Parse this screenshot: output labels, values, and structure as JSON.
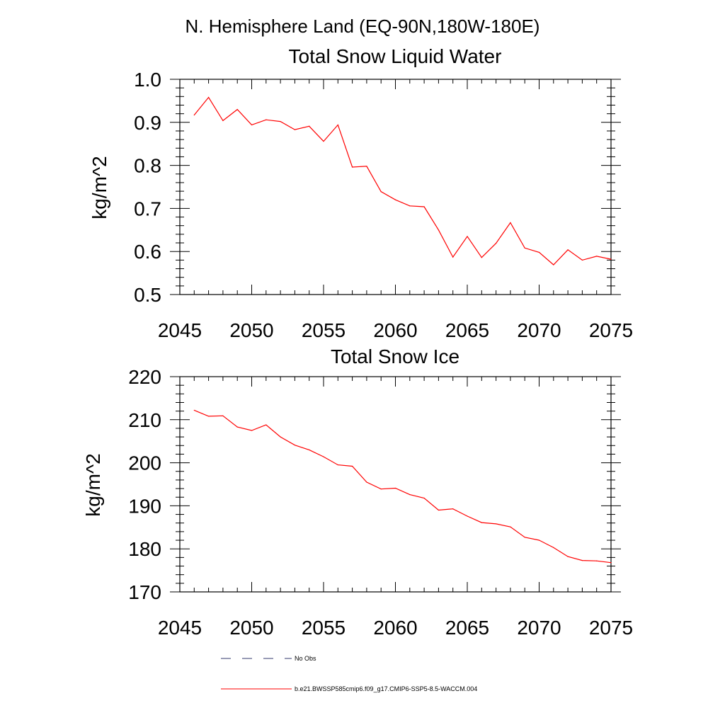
{
  "page_title": "N. Hemisphere Land (EQ-90N,180W-180E)",
  "chart_data": [
    {
      "type": "line",
      "title": "Total Snow Liquid Water",
      "xlabel": "",
      "ylabel": "kg/m^2",
      "xlim": [
        2045,
        2075
      ],
      "ylim": [
        0.5,
        1.0
      ],
      "x_ticks": [
        "2045",
        "2050",
        "2055",
        "2060",
        "2065",
        "2070",
        "2075"
      ],
      "y_ticks": [
        "0.5",
        "0.6",
        "0.7",
        "0.8",
        "0.9",
        "1.0"
      ],
      "grid": false,
      "series": [
        {
          "name": "b.e21.BWSSP585cmip6.f09_g17.CMIP6-SSP5-8.5-WACCM.004",
          "color": "#ff0000",
          "x": [
            2046,
            2047,
            2048,
            2049,
            2050,
            2051,
            2052,
            2053,
            2054,
            2055,
            2056,
            2057,
            2058,
            2059,
            2060,
            2061,
            2062,
            2063,
            2064,
            2065,
            2066,
            2067,
            2068,
            2069,
            2070,
            2071,
            2072,
            2073,
            2074,
            2075
          ],
          "values": [
            0.917,
            0.958,
            0.904,
            0.93,
            0.894,
            0.906,
            0.902,
            0.883,
            0.891,
            0.856,
            0.894,
            0.796,
            0.798,
            0.739,
            0.72,
            0.706,
            0.704,
            0.65,
            0.587,
            0.635,
            0.586,
            0.619,
            0.667,
            0.608,
            0.598,
            0.569,
            0.604,
            0.58,
            0.589,
            0.582
          ]
        }
      ]
    },
    {
      "type": "line",
      "title": "Total Snow Ice",
      "xlabel": "",
      "ylabel": "kg/m^2",
      "xlim": [
        2045,
        2075
      ],
      "ylim": [
        170,
        220
      ],
      "x_ticks": [
        "2045",
        "2050",
        "2055",
        "2060",
        "2065",
        "2070",
        "2075"
      ],
      "y_ticks": [
        "170",
        "180",
        "190",
        "200",
        "210",
        "220"
      ],
      "grid": false,
      "series": [
        {
          "name": "b.e21.BWSSP585cmip6.f09_g17.CMIP6-SSP5-8.5-WACCM.004",
          "color": "#ff0000",
          "x": [
            2046,
            2047,
            2048,
            2049,
            2050,
            2051,
            2052,
            2053,
            2054,
            2055,
            2056,
            2057,
            2058,
            2059,
            2060,
            2061,
            2062,
            2063,
            2064,
            2065,
            2066,
            2067,
            2068,
            2069,
            2070,
            2071,
            2072,
            2073,
            2074,
            2075
          ],
          "values": [
            212.2,
            210.8,
            210.9,
            208.3,
            207.5,
            208.8,
            206.0,
            204.1,
            203.0,
            201.4,
            199.5,
            199.2,
            195.5,
            193.9,
            194.1,
            192.6,
            191.8,
            189.0,
            189.3,
            187.6,
            186.1,
            185.8,
            185.1,
            182.7,
            182.0,
            180.3,
            178.2,
            177.3,
            177.2,
            176.8
          ]
        }
      ]
    }
  ],
  "legend": [
    {
      "label": "No Obs",
      "style": "dashed",
      "color": "#333a6e"
    },
    {
      "label": "b.e21.BWSSP585cmip6.f09_g17.CMIP6-SSP5-8.5-WACCM.004",
      "style": "solid",
      "color": "#ff0000"
    }
  ]
}
